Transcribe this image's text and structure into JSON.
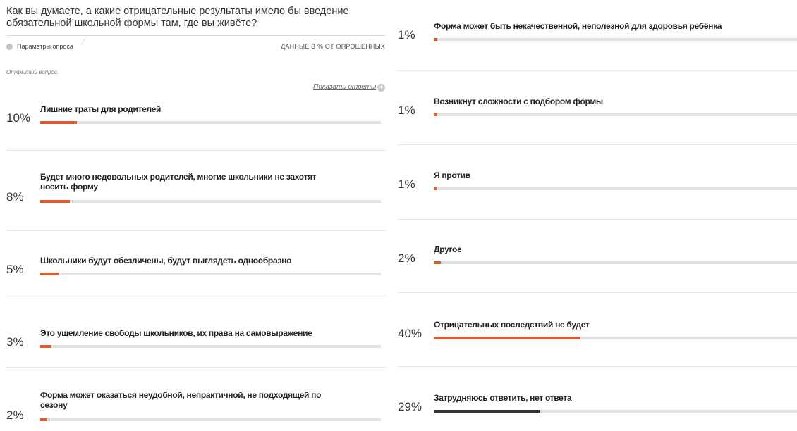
{
  "question": "Как вы думаете, а какие отрицательные результаты имело бы введение обязательной школьной формы там, где вы живёте?",
  "params_label": "Параметры опроса",
  "data_note": "ДАННЫЕ В % ОТ ОПРОШЕННЫХ",
  "open_question": "Открытый вопрос.",
  "show_answers": "Показать ответы",
  "colors": {
    "bar": "#e05a2b",
    "bar_highlight": "#333333",
    "track": "#e3e3e3"
  },
  "chart_data": {
    "type": "bar",
    "orientation": "horizontal",
    "unit": "%",
    "items": [
      {
        "pct_label": "10%",
        "value": 10,
        "label": "Лишние траты для родителей"
      },
      {
        "pct_label": "8%",
        "value": 8,
        "label": "Будет много недовольных родителей, многие школьники не захотят носить форму"
      },
      {
        "pct_label": "5%",
        "value": 5,
        "label": "Школьники будут обезличены, будут выглядеть однообразно"
      },
      {
        "pct_label": "3%",
        "value": 3,
        "label": "Это ущемление свободы школьников, их права на самовыражение"
      },
      {
        "pct_label": "2%",
        "value": 2,
        "label": "Форма может оказаться неудобной, непрактичной, не подходящей по сезону"
      },
      {
        "pct_label": "1%",
        "value": 1,
        "label": "Форма может быть некачественной, неполезной для здоровья ребёнка"
      },
      {
        "pct_label": "1%",
        "value": 1,
        "label": "Возникнут сложности с подбором формы"
      },
      {
        "pct_label": "1%",
        "value": 1,
        "label": "Я против"
      },
      {
        "pct_label": "2%",
        "value": 2,
        "label": "Другое"
      },
      {
        "pct_label": "40%",
        "value": 40,
        "label": "Отрицательных последствий не будет"
      },
      {
        "pct_label": "29%",
        "value": 29,
        "label": "Затрудняюсь ответить, нет ответа",
        "highlight": true
      }
    ]
  }
}
